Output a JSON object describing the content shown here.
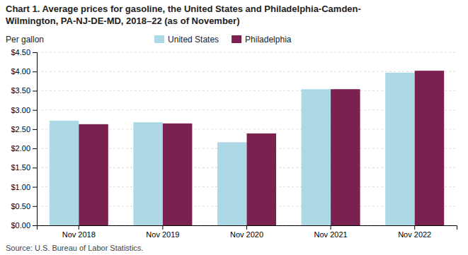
{
  "chart_data": {
    "type": "bar",
    "title": [
      "Chart 1. Average prices for gasoline, the United States and Philadelphia-Camden-",
      "Wilmington, PA-NJ-DE-MD, 2018–22 (as of November)"
    ],
    "ylabel": "Per gallon",
    "annotations": [
      "Source: U.S. Bureau of Labor Statistics."
    ],
    "categories": [
      "Nov 2018",
      "Nov 2019",
      "Nov 2020",
      "Nov 2021",
      "Nov 2022"
    ],
    "series": [
      {
        "name": "United States",
        "color": "#add8e6",
        "values": [
          2.72,
          2.68,
          2.16,
          3.54,
          3.97
        ]
      },
      {
        "name": "Philadelphia",
        "color": "#7b2150",
        "values": [
          2.63,
          2.65,
          2.39,
          3.54,
          4.02
        ]
      }
    ],
    "ylim": [
      0,
      4.5
    ],
    "yticks": [
      {
        "value": 0.0,
        "label": "$0.00"
      },
      {
        "value": 0.5,
        "label": "$0.50"
      },
      {
        "value": 1.0,
        "label": "$1.00"
      },
      {
        "value": 1.5,
        "label": "$1.50"
      },
      {
        "value": 2.0,
        "label": "$2.00"
      },
      {
        "value": 2.5,
        "label": "$2.50"
      },
      {
        "value": 3.0,
        "label": "$3.00"
      },
      {
        "value": 3.5,
        "label": "$3.50"
      },
      {
        "value": 4.0,
        "label": "$4.00"
      },
      {
        "value": 4.5,
        "label": "$4.50"
      }
    ],
    "grid": true,
    "legend": "top"
  }
}
